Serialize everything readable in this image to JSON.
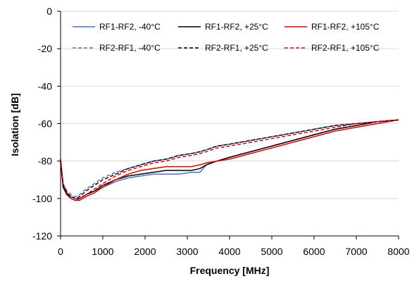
{
  "chart_data": {
    "type": "line",
    "title": "",
    "xlabel": "Frequency [MHz]",
    "ylabel": "Isolation [dB]",
    "xlim": [
      0,
      8000
    ],
    "ylim": [
      -120,
      0
    ],
    "xticks": [
      0,
      1000,
      2000,
      3000,
      4000,
      5000,
      6000,
      7000,
      8000
    ],
    "yticks": [
      0,
      -20,
      -40,
      -60,
      -80,
      -100,
      -120
    ],
    "grid": "horizontal",
    "legend_position": "top",
    "series": [
      {
        "name": "RF1-RF2, -40°C",
        "color": "#4472c4",
        "dash": "solid",
        "x": [
          0,
          60,
          150,
          250,
          350,
          450,
          600,
          800,
          1000,
          1300,
          1600,
          1900,
          2200,
          2500,
          2800,
          3100,
          3300,
          3450,
          3700,
          4000,
          4500,
          5000,
          5500,
          6000,
          6500,
          7000,
          7500,
          8000
        ],
        "y": [
          -80,
          -93,
          -97,
          -99,
          -100,
          -100,
          -98,
          -96,
          -94,
          -91,
          -89,
          -88,
          -87,
          -87,
          -87,
          -86,
          -86,
          -82,
          -80,
          -78,
          -75,
          -72,
          -69,
          -66,
          -63,
          -61,
          -59,
          -58
        ]
      },
      {
        "name": "RF1-RF2, +25°C",
        "color": "#000000",
        "dash": "solid",
        "x": [
          0,
          60,
          150,
          250,
          350,
          450,
          600,
          800,
          1000,
          1300,
          1600,
          1900,
          2200,
          2500,
          2800,
          3100,
          3300,
          3450,
          3700,
          4000,
          4500,
          5000,
          5500,
          6000,
          6500,
          7000,
          7500,
          8000
        ],
        "y": [
          -80,
          -94,
          -98,
          -100,
          -101,
          -100,
          -98,
          -96,
          -93,
          -90,
          -88,
          -87,
          -86,
          -85,
          -85,
          -85,
          -84,
          -82,
          -80,
          -78,
          -75,
          -72,
          -69,
          -66,
          -63,
          -61,
          -59,
          -58
        ]
      },
      {
        "name": "RF1-RF2, +105°C",
        "color": "#e00000",
        "dash": "solid",
        "x": [
          0,
          60,
          150,
          250,
          350,
          450,
          600,
          800,
          1000,
          1300,
          1600,
          1900,
          2200,
          2500,
          2800,
          3100,
          3300,
          3450,
          3700,
          4000,
          4500,
          5000,
          5500,
          6000,
          6500,
          7000,
          7500,
          8000
        ],
        "y": [
          -79,
          -92,
          -97,
          -100,
          -101,
          -101,
          -99,
          -97,
          -94,
          -90,
          -87,
          -85,
          -84,
          -83,
          -83,
          -83,
          -82,
          -81,
          -80,
          -79,
          -76,
          -73,
          -70,
          -67,
          -64,
          -62,
          -60,
          -58
        ]
      },
      {
        "name": "RF2-RF1, -40°C",
        "color": "#4472c4",
        "dash": "dashed",
        "x": [
          0,
          60,
          150,
          250,
          350,
          450,
          600,
          800,
          1000,
          1300,
          1600,
          1900,
          2200,
          2500,
          2800,
          3100,
          3300,
          3450,
          3700,
          4000,
          4500,
          5000,
          5500,
          6000,
          6500,
          7000,
          7500,
          8000
        ],
        "y": [
          -80,
          -92,
          -96,
          -98,
          -99,
          -98,
          -95,
          -92,
          -89,
          -86,
          -84,
          -82,
          -80,
          -79,
          -77,
          -76,
          -75,
          -74,
          -72,
          -71,
          -69,
          -67,
          -65,
          -63,
          -61,
          -60,
          -59,
          -58
        ]
      },
      {
        "name": "RF2-RF1, +25°C",
        "color": "#000000",
        "dash": "dashed",
        "x": [
          0,
          60,
          150,
          250,
          350,
          450,
          600,
          800,
          1000,
          1300,
          1600,
          1900,
          2200,
          2500,
          2800,
          3100,
          3300,
          3450,
          3700,
          4000,
          4500,
          5000,
          5500,
          6000,
          6500,
          7000,
          7500,
          8000
        ],
        "y": [
          -80,
          -93,
          -97,
          -99,
          -100,
          -99,
          -96,
          -93,
          -90,
          -87,
          -84,
          -82,
          -80,
          -79,
          -77,
          -76,
          -75,
          -74,
          -72,
          -71,
          -69,
          -67,
          -65,
          -63,
          -61,
          -60,
          -59,
          -58
        ]
      },
      {
        "name": "RF2-RF1, +105°C",
        "color": "#e00000",
        "dash": "dashed",
        "x": [
          0,
          60,
          150,
          250,
          350,
          450,
          600,
          800,
          1000,
          1300,
          1600,
          1900,
          2200,
          2500,
          2800,
          3100,
          3300,
          3450,
          3700,
          4000,
          4500,
          5000,
          5500,
          6000,
          6500,
          7000,
          7500,
          8000
        ],
        "y": [
          -79,
          -92,
          -97,
          -100,
          -101,
          -100,
          -98,
          -95,
          -92,
          -88,
          -85,
          -83,
          -81,
          -80,
          -78,
          -77,
          -76,
          -75,
          -73,
          -72,
          -70,
          -68,
          -66,
          -64,
          -62,
          -60,
          -59,
          -58
        ]
      }
    ]
  }
}
